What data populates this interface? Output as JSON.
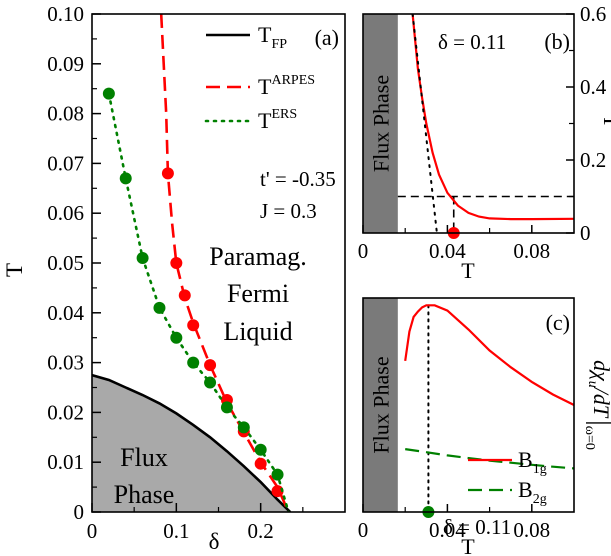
{
  "colors": {
    "fp": "#000000",
    "arpes": "#ff0000",
    "ers": "#008000",
    "flux_fill": "#a9a9a9",
    "flux_band": "#7a7a7a"
  },
  "chart_data": [
    {
      "panel": "(a)",
      "type": "line",
      "xlabel": "δ",
      "ylabel": "T",
      "xlim": [
        0,
        0.3
      ],
      "ylim": [
        0,
        0.1
      ],
      "xticks": [
        "0",
        "0.1",
        "0.2"
      ],
      "yticks": [
        "0",
        "0.01",
        "0.02",
        "0.03",
        "0.04",
        "0.05",
        "0.06",
        "0.07",
        "0.08",
        "0.09",
        "0.10"
      ],
      "legend": [
        {
          "base": "T",
          "sup": "",
          "sub": "FP"
        },
        {
          "base": "T",
          "sup": "ARPES",
          "sub": ""
        },
        {
          "base": "T",
          "sup": "ERS",
          "sub": ""
        }
      ],
      "params": [
        "t' = -0.35",
        "J = 0.3"
      ],
      "region_labels": {
        "paramag": [
          "Paramag.",
          "Fermi",
          "Liquid"
        ],
        "flux": [
          "Flux",
          "Phase"
        ]
      },
      "series": [
        {
          "name": "T_FP",
          "style": "solid",
          "x": [
            0,
            0.02,
            0.04,
            0.06,
            0.08,
            0.1,
            0.12,
            0.14,
            0.16,
            0.18,
            0.2,
            0.22,
            0.235
          ],
          "y": [
            0.0275,
            0.0265,
            0.025,
            0.0235,
            0.0218,
            0.0198,
            0.0175,
            0.015,
            0.0122,
            0.0092,
            0.006,
            0.0025,
            0
          ]
        },
        {
          "name": "T_ARPES",
          "style": "dashed",
          "line_x": [
            0.082,
            0.085,
            0.088,
            0.09,
            0.095,
            0.1,
            0.11,
            0.12,
            0.14,
            0.16,
            0.18,
            0.2,
            0.22,
            0.233
          ],
          "line_y": [
            0.1,
            0.09,
            0.08,
            0.068,
            0.058,
            0.05,
            0.043,
            0.038,
            0.0295,
            0.022,
            0.016,
            0.01,
            0.005,
            0
          ],
          "x": [
            0.09,
            0.1,
            0.11,
            0.12,
            0.14,
            0.16,
            0.18,
            0.2,
            0.22
          ],
          "y": [
            0.068,
            0.05,
            0.0435,
            0.0375,
            0.0295,
            0.0225,
            0.0162,
            0.0097,
            0.0042
          ]
        },
        {
          "name": "T_ERS",
          "style": "dotted",
          "line_x": [
            0.02,
            0.04,
            0.06,
            0.08,
            0.1,
            0.12,
            0.14,
            0.16,
            0.18,
            0.2,
            0.22,
            0.233
          ],
          "line_y": [
            0.084,
            0.067,
            0.051,
            0.041,
            0.035,
            0.03,
            0.026,
            0.021,
            0.017,
            0.0125,
            0.0075,
            0
          ],
          "x": [
            0.02,
            0.04,
            0.06,
            0.08,
            0.1,
            0.12,
            0.14,
            0.16,
            0.18,
            0.2,
            0.22
          ],
          "y": [
            0.084,
            0.067,
            0.051,
            0.041,
            0.035,
            0.03,
            0.026,
            0.021,
            0.017,
            0.0125,
            0.0075
          ]
        }
      ]
    },
    {
      "panel": "(b)",
      "type": "line",
      "xlabel": "T",
      "ylabel": "Γ",
      "xlim": [
        0,
        0.1
      ],
      "ylim": [
        0,
        0.6
      ],
      "xticks": [
        "0",
        "0.04",
        "0.08"
      ],
      "yticks": [
        "0",
        "0.2",
        "0.4",
        "0.6"
      ],
      "annotation": "δ = 0.11",
      "band_label": "Flux Phase",
      "band_xmax": 0.0165,
      "hline": 0.1,
      "vline": 0.043,
      "marker": {
        "x": 0.043,
        "y": 0
      },
      "series": [
        {
          "name": "Γ",
          "style": "solid",
          "x": [
            0.0235,
            0.026,
            0.028,
            0.03,
            0.033,
            0.036,
            0.04,
            0.045,
            0.05,
            0.055,
            0.06,
            0.07,
            0.08,
            0.1
          ],
          "y": [
            0.6,
            0.45,
            0.37,
            0.3,
            0.22,
            0.16,
            0.11,
            0.075,
            0.055,
            0.045,
            0.04,
            0.038,
            0.038,
            0.039
          ]
        },
        {
          "name": "tangent",
          "style": "dotted",
          "x": [
            0.0235,
            0.035
          ],
          "y": [
            0.6,
            0
          ]
        }
      ]
    },
    {
      "panel": "(c)",
      "type": "line",
      "xlabel": "T",
      "xlim": [
        0,
        0.1
      ],
      "xticks": [
        "0",
        "0.04",
        "0.08"
      ],
      "ylabel_parts": {
        "main": "dχ",
        "main_sub": "u",
        "rest": "/dT",
        "eval_sub": "ω=0"
      },
      "annotation": "δ = 0.11",
      "band_label": "Flux Phase",
      "band_xmax": 0.0165,
      "vline": 0.031,
      "marker": {
        "x": 0.031,
        "y": 0
      },
      "legend": [
        {
          "base": "B",
          "sub": "1g"
        },
        {
          "base": "B",
          "sub": "2g"
        }
      ],
      "series": [
        {
          "name": "B1g",
          "style": "solid",
          "x": [
            0.02,
            0.022,
            0.024,
            0.026,
            0.028,
            0.03,
            0.031,
            0.034,
            0.04,
            0.05,
            0.06,
            0.07,
            0.08,
            0.09,
            0.1
          ],
          "y": [
            0.72,
            0.86,
            0.93,
            0.955,
            0.975,
            0.985,
            0.985,
            0.985,
            0.96,
            0.87,
            0.77,
            0.69,
            0.62,
            0.56,
            0.51
          ]
        },
        {
          "name": "B2g",
          "style": "dashed",
          "x": [
            0.02,
            0.03,
            0.04,
            0.05,
            0.06,
            0.07,
            0.08,
            0.09,
            0.1
          ],
          "y": [
            0.3,
            0.285,
            0.27,
            0.257,
            0.245,
            0.235,
            0.225,
            0.216,
            0.208
          ]
        }
      ]
    }
  ]
}
